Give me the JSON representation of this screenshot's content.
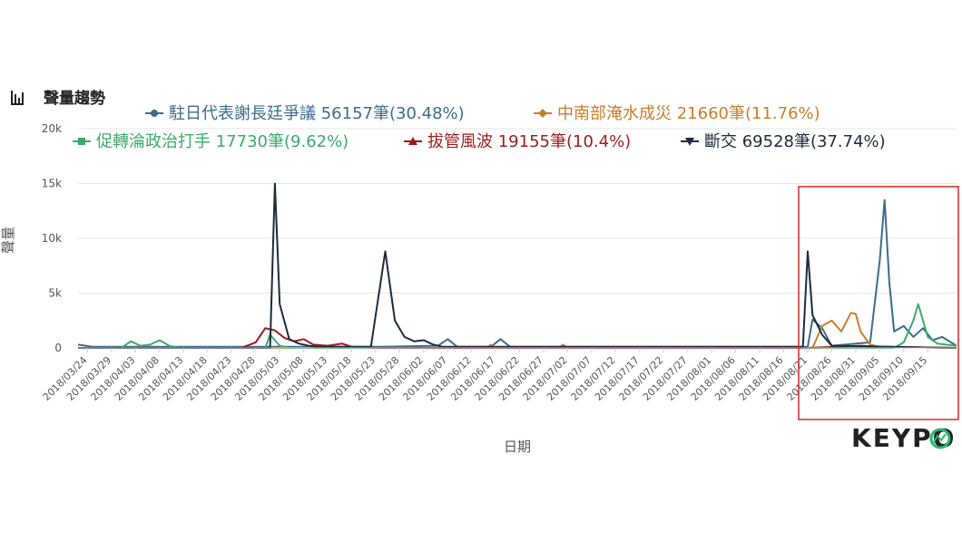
{
  "chart_data": {
    "type": "line",
    "title": "聲量趨勢",
    "xlabel": "日期",
    "ylabel": "聲量",
    "ylim": [
      0,
      20000
    ],
    "y_ticks": [
      "0",
      "5k",
      "10k",
      "15k",
      "20k"
    ],
    "grid": "horizontal",
    "legend_position": "top",
    "x_start_date": "2018-03-22",
    "x_end_date": "2018-09-21",
    "x_tick_labels": [
      "2018/03/24",
      "2018/03/29",
      "2018/04/03",
      "2018/04/08",
      "2018/04/13",
      "2018/04/18",
      "2018/04/23",
      "2018/04/28",
      "2018/05/03",
      "2018/05/08",
      "2018/05/13",
      "2018/05/18",
      "2018/05/23",
      "2018/05/28",
      "2018/06/02",
      "2018/06/07",
      "2018/06/12",
      "2018/06/17",
      "2018/06/22",
      "2018/06/27",
      "2018/07/02",
      "2018/07/07",
      "2018/07/12",
      "2018/07/17",
      "2018/07/22",
      "2018/07/27",
      "2018/08/01",
      "2018/08/06",
      "2018/08/11",
      "2018/08/16",
      "2018/08/21",
      "2018/08/26",
      "2018/08/31",
      "2018/09/05",
      "2018/09/10",
      "2018/09/15"
    ],
    "series": [
      {
        "name": "駐日代表謝長廷爭議",
        "legend": "駐日代表謝長廷爭議 56157筆(30.48%)",
        "color": "#3d6b8c",
        "marker": "circle",
        "points": [
          [
            "2018-03-22",
            300
          ],
          [
            "2018-03-25",
            100
          ],
          [
            "2018-05-01",
            100
          ],
          [
            "2018-05-24",
            100
          ],
          [
            "2018-06-05",
            200
          ],
          [
            "2018-06-07",
            800
          ],
          [
            "2018-06-09",
            100
          ],
          [
            "2018-06-16",
            100
          ],
          [
            "2018-06-18",
            800
          ],
          [
            "2018-06-20",
            100
          ],
          [
            "2018-08-21",
            100
          ],
          [
            "2018-08-22",
            2600
          ],
          [
            "2018-08-24",
            1800
          ],
          [
            "2018-08-26",
            200
          ],
          [
            "2018-09-03",
            500
          ],
          [
            "2018-09-05",
            8000
          ],
          [
            "2018-09-06",
            13500
          ],
          [
            "2018-09-07",
            6000
          ],
          [
            "2018-09-08",
            1500
          ],
          [
            "2018-09-10",
            2000
          ],
          [
            "2018-09-12",
            1000
          ],
          [
            "2018-09-14",
            1800
          ],
          [
            "2018-09-16",
            700
          ],
          [
            "2018-09-18",
            1000
          ],
          [
            "2018-09-21",
            200
          ]
        ]
      },
      {
        "name": "中南部淹水成災",
        "legend": "中南部淹水成災 21660筆(11.76%)",
        "color": "#c97d2a",
        "marker": "diamond",
        "points": [
          [
            "2018-03-22",
            0
          ],
          [
            "2018-06-15",
            0
          ],
          [
            "2018-06-16",
            300
          ],
          [
            "2018-06-17",
            0
          ],
          [
            "2018-06-30",
            0
          ],
          [
            "2018-07-01",
            300
          ],
          [
            "2018-07-02",
            0
          ],
          [
            "2018-08-22",
            0
          ],
          [
            "2018-08-24",
            2000
          ],
          [
            "2018-08-26",
            2500
          ],
          [
            "2018-08-28",
            1500
          ],
          [
            "2018-08-30",
            3200
          ],
          [
            "2018-08-31",
            3100
          ],
          [
            "2018-09-01",
            1500
          ],
          [
            "2018-09-03",
            300
          ],
          [
            "2018-09-05",
            100
          ],
          [
            "2018-09-21",
            0
          ]
        ]
      },
      {
        "name": "促轉淪政治打手",
        "legend": "促轉淪政治打手 17730筆(9.62%)",
        "color": "#3aaa6a",
        "marker": "square",
        "points": [
          [
            "2018-03-22",
            0
          ],
          [
            "2018-03-31",
            0
          ],
          [
            "2018-04-02",
            600
          ],
          [
            "2018-04-04",
            200
          ],
          [
            "2018-04-06",
            300
          ],
          [
            "2018-04-08",
            700
          ],
          [
            "2018-04-10",
            200
          ],
          [
            "2018-04-12",
            0
          ],
          [
            "2018-04-30",
            0
          ],
          [
            "2018-05-01",
            1200
          ],
          [
            "2018-05-03",
            200
          ],
          [
            "2018-05-05",
            0
          ],
          [
            "2018-09-08",
            0
          ],
          [
            "2018-09-10",
            500
          ],
          [
            "2018-09-12",
            2500
          ],
          [
            "2018-09-13",
            4000
          ],
          [
            "2018-09-15",
            1000
          ],
          [
            "2018-09-17",
            400
          ],
          [
            "2018-09-21",
            200
          ]
        ]
      },
      {
        "name": "拔管風波",
        "legend": "拔管風波 19155筆(10.4%)",
        "color": "#9b1c1c",
        "marker": "triangle",
        "points": [
          [
            "2018-03-22",
            0
          ],
          [
            "2018-04-25",
            0
          ],
          [
            "2018-04-28",
            500
          ],
          [
            "2018-04-30",
            1800
          ],
          [
            "2018-05-02",
            1600
          ],
          [
            "2018-05-04",
            900
          ],
          [
            "2018-05-06",
            600
          ],
          [
            "2018-05-08",
            800
          ],
          [
            "2018-05-10",
            300
          ],
          [
            "2018-05-13",
            200
          ],
          [
            "2018-05-16",
            400
          ],
          [
            "2018-05-18",
            100
          ],
          [
            "2018-05-23",
            0
          ],
          [
            "2018-08-21",
            0
          ],
          [
            "2018-09-01",
            200
          ],
          [
            "2018-09-05",
            100
          ],
          [
            "2018-09-21",
            0
          ]
        ]
      },
      {
        "name": "斷交",
        "legend": "斷交 69528筆(37.74%)",
        "color": "#1f2a3c",
        "marker": "triangle-down",
        "points": [
          [
            "2018-03-22",
            0
          ],
          [
            "2018-05-01",
            0
          ],
          [
            "2018-05-02",
            15000
          ],
          [
            "2018-05-03",
            4000
          ],
          [
            "2018-05-05",
            800
          ],
          [
            "2018-05-07",
            400
          ],
          [
            "2018-05-09",
            200
          ],
          [
            "2018-05-11",
            100
          ],
          [
            "2018-05-22",
            100
          ],
          [
            "2018-05-25",
            8800
          ],
          [
            "2018-05-27",
            2500
          ],
          [
            "2018-05-29",
            1000
          ],
          [
            "2018-05-31",
            600
          ],
          [
            "2018-06-02",
            700
          ],
          [
            "2018-06-04",
            300
          ],
          [
            "2018-06-06",
            100
          ],
          [
            "2018-08-20",
            100
          ],
          [
            "2018-08-21",
            8800
          ],
          [
            "2018-08-22",
            3000
          ],
          [
            "2018-08-24",
            1200
          ],
          [
            "2018-08-26",
            200
          ],
          [
            "2018-09-21",
            0
          ]
        ]
      }
    ]
  },
  "logo": {
    "text": "KEYPO"
  },
  "colors": {
    "highlight_box": "#d62828",
    "grid": "#e6e6e6",
    "logo_accent": "#2bb673"
  }
}
